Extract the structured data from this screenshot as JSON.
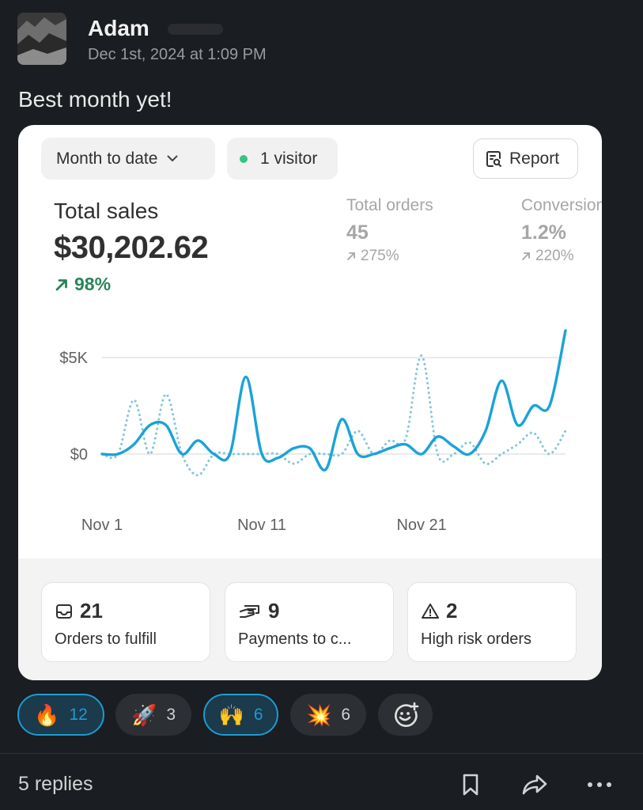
{
  "post": {
    "author": "Adam",
    "timestamp": "Dec 1st, 2024 at 1:09 PM",
    "message": "Best month yet!"
  },
  "card": {
    "range_label": "Month to date",
    "visitor_label": "1 visitor",
    "report_label": "Report",
    "total_sales": {
      "label": "Total sales",
      "value": "$30,202.62",
      "change": "98%"
    },
    "metrics": [
      {
        "label": "Total orders",
        "value": "45",
        "change": "275%"
      },
      {
        "label": "Conversion",
        "value": "1.2%",
        "change": "220%"
      }
    ],
    "stats": [
      {
        "count": "21",
        "label": "Orders to fulfill",
        "icon": "inbox-icon"
      },
      {
        "count": "9",
        "label": "Payments to c...",
        "icon": "payment-icon"
      },
      {
        "count": "2",
        "label": "High risk orders",
        "icon": "warning-icon"
      }
    ]
  },
  "chart_data": {
    "type": "line",
    "x_tick_labels": [
      "Nov 1",
      "Nov 11",
      "Nov 21"
    ],
    "y_tick_labels": [
      "$5K",
      "$0"
    ],
    "ylim": [
      -1500,
      6500
    ],
    "grid": true,
    "colors": {
      "current": "#1aa3d8",
      "previous": "#7fc6d8"
    },
    "series": [
      {
        "style": "solid",
        "x": [
          1,
          2,
          3,
          4,
          5,
          6,
          7,
          8,
          9,
          10,
          11,
          12,
          13,
          14,
          15,
          16,
          17,
          18,
          19,
          20,
          21,
          22,
          23,
          24,
          25,
          26,
          27,
          28,
          29,
          30
        ],
        "values": [
          0,
          0,
          500,
          1500,
          1500,
          0,
          700,
          0,
          0,
          4000,
          0,
          -200,
          300,
          300,
          -800,
          1800,
          0,
          0,
          300,
          500,
          0,
          900,
          400,
          0,
          1200,
          3800,
          1500,
          2500,
          2500,
          6400
        ]
      },
      {
        "style": "dotted",
        "x": [
          1,
          2,
          3,
          4,
          5,
          6,
          7,
          8,
          9,
          10,
          11,
          12,
          13,
          14,
          15,
          16,
          17,
          18,
          19,
          20,
          21,
          22,
          23,
          24,
          25,
          26,
          27,
          28,
          29,
          30
        ],
        "values": [
          0,
          0,
          2800,
          0,
          3100,
          0,
          -1100,
          0,
          0,
          0,
          0,
          0,
          -500,
          0,
          0,
          0,
          1200,
          0,
          700,
          800,
          5100,
          0,
          0,
          600,
          -500,
          0,
          500,
          1100,
          0,
          1200
        ]
      }
    ]
  },
  "reactions": [
    {
      "emoji": "🔥",
      "count": "12",
      "active": true
    },
    {
      "emoji": "🚀",
      "count": "3",
      "active": false
    },
    {
      "emoji": "🙌",
      "count": "6",
      "active": true
    },
    {
      "emoji": "💥",
      "count": "6",
      "active": false
    }
  ],
  "thread": {
    "replies_label": "5 replies"
  },
  "icons": {
    "add_reaction": "add-reaction-icon",
    "bookmark": "bookmark-icon",
    "share": "share-icon",
    "more": "more-icon"
  }
}
